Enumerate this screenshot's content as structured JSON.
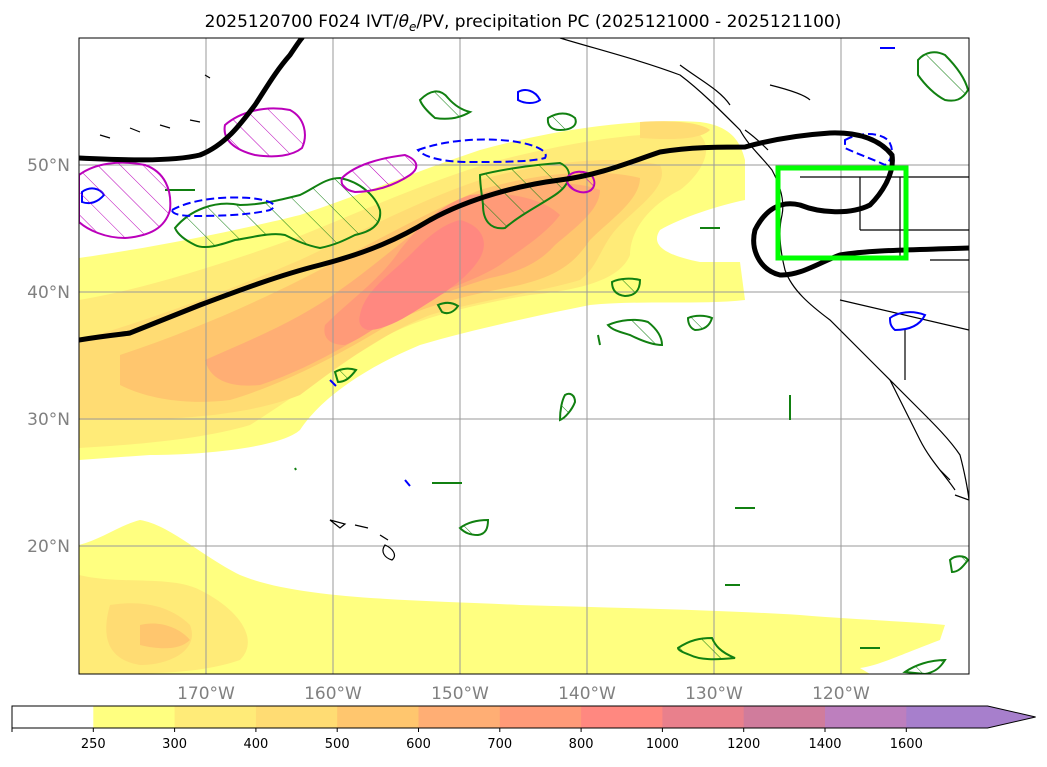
{
  "chart_data": {
    "type": "map-contour",
    "title": "2025120700 F024 IVT/θe/PV, precipitation PC (2025121000 - 2025121100)",
    "title_parts": {
      "pre": "2025120700 F024 IVT/",
      "theta": "θ",
      "sub": "e",
      "post": "/PV, precipitation PC (2025121000 - 2025121100)"
    },
    "lon_range": [
      -180,
      -110
    ],
    "lat_range": [
      10,
      60
    ],
    "lon_ticks": [
      {
        "lon": -170,
        "label": "170°W"
      },
      {
        "lon": -160,
        "label": "160°W"
      },
      {
        "lon": -150,
        "label": "150°W"
      },
      {
        "lon": -140,
        "label": "140°W"
      },
      {
        "lon": -130,
        "label": "130°W"
      },
      {
        "lon": -120,
        "label": "120°W"
      }
    ],
    "lat_ticks": [
      {
        "lat": 50,
        "label": "50°N"
      },
      {
        "lat": 40,
        "label": "40°N"
      },
      {
        "lat": 30,
        "label": "30°N"
      },
      {
        "lat": 20,
        "label": "20°N"
      }
    ],
    "ivt_levels": [
      {
        "value": "250",
        "color": "#ffff80"
      },
      {
        "value": "300",
        "color": "#ffeb78"
      },
      {
        "value": "400",
        "color": "#ffdc73"
      },
      {
        "value": "500",
        "color": "#ffc66e"
      },
      {
        "value": "600",
        "color": "#ffae74"
      },
      {
        "value": "700",
        "color": "#ff9a78"
      },
      {
        "value": "800",
        "color": "#ff8880"
      },
      {
        "value": "1000",
        "color": "#e9808c"
      },
      {
        "value": "1200",
        "color": "#d07c9c"
      },
      {
        "value": "1400",
        "color": "#bd7fbe"
      },
      {
        "value": "1600",
        "color": "#a77fcc"
      }
    ],
    "colorbar_extend": "max",
    "highlight_box": {
      "lon_min": -125,
      "lon_max": -115,
      "lat_min": 43,
      "lat_max": 49.5,
      "color": "#00ff00"
    },
    "colors": {
      "pv": "#000000",
      "theta_e_pos": "#118011",
      "theta_e_neg": "#0000ff",
      "precip": "#bb00bb",
      "coast": "#000000"
    }
  }
}
